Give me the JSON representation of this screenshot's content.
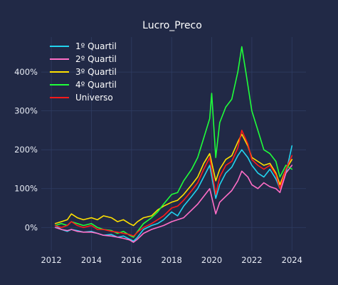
{
  "chart_data": {
    "type": "line",
    "title": "Lucro_Preco",
    "xlabel": "",
    "ylabel": "",
    "xlim": [
      2011.5,
      2024.7
    ],
    "ylim": [
      -60,
      490
    ],
    "x_ticks": [
      2012,
      2014,
      2016,
      2018,
      2020,
      2022,
      2024
    ],
    "x_tick_labels": [
      "2012",
      "2014",
      "2016",
      "2018",
      "2020",
      "2022",
      "2024"
    ],
    "y_ticks": [
      0,
      100,
      200,
      300,
      400
    ],
    "y_tick_labels": [
      "0%",
      "100%",
      "200%",
      "300%",
      "400%"
    ],
    "grid": true,
    "legend_position": "top-left",
    "background_color": "#212946",
    "series": [
      {
        "name": "1º Quartil",
        "color": "#22d3ee",
        "points": [
          [
            2012.2,
            5
          ],
          [
            2012.5,
            -5
          ],
          [
            2012.8,
            -10
          ],
          [
            2013.0,
            -5
          ],
          [
            2013.3,
            -8
          ],
          [
            2013.6,
            -12
          ],
          [
            2014.0,
            -10
          ],
          [
            2014.3,
            -15
          ],
          [
            2014.6,
            -20
          ],
          [
            2015.0,
            -18
          ],
          [
            2015.3,
            -25
          ],
          [
            2015.6,
            -22
          ],
          [
            2015.9,
            -30
          ],
          [
            2016.1,
            -35
          ],
          [
            2016.3,
            -25
          ],
          [
            2016.6,
            -5
          ],
          [
            2017.0,
            5
          ],
          [
            2017.3,
            10
          ],
          [
            2017.6,
            20
          ],
          [
            2018.0,
            40
          ],
          [
            2018.3,
            30
          ],
          [
            2018.6,
            55
          ],
          [
            2019.0,
            80
          ],
          [
            2019.3,
            100
          ],
          [
            2019.6,
            130
          ],
          [
            2019.9,
            160
          ],
          [
            2020.2,
            75
          ],
          [
            2020.4,
            110
          ],
          [
            2020.7,
            140
          ],
          [
            2021.0,
            155
          ],
          [
            2021.3,
            185
          ],
          [
            2021.5,
            200
          ],
          [
            2021.8,
            180
          ],
          [
            2022.0,
            160
          ],
          [
            2022.3,
            140
          ],
          [
            2022.6,
            130
          ],
          [
            2022.9,
            150
          ],
          [
            2023.2,
            125
          ],
          [
            2023.4,
            100
          ],
          [
            2023.7,
            140
          ],
          [
            2024.0,
            210
          ]
        ]
      },
      {
        "name": "2º Quartil",
        "color": "#ff6ec7",
        "points": [
          [
            2012.2,
            0
          ],
          [
            2012.5,
            -5
          ],
          [
            2012.8,
            -8
          ],
          [
            2013.0,
            -5
          ],
          [
            2013.3,
            -10
          ],
          [
            2013.6,
            -12
          ],
          [
            2014.0,
            -12
          ],
          [
            2014.3,
            -15
          ],
          [
            2014.6,
            -20
          ],
          [
            2015.0,
            -22
          ],
          [
            2015.3,
            -25
          ],
          [
            2015.6,
            -28
          ],
          [
            2015.9,
            -32
          ],
          [
            2016.1,
            -38
          ],
          [
            2016.3,
            -30
          ],
          [
            2016.6,
            -15
          ],
          [
            2017.0,
            -5
          ],
          [
            2017.3,
            0
          ],
          [
            2017.6,
            5
          ],
          [
            2018.0,
            15
          ],
          [
            2018.3,
            20
          ],
          [
            2018.6,
            25
          ],
          [
            2019.0,
            45
          ],
          [
            2019.3,
            60
          ],
          [
            2019.6,
            80
          ],
          [
            2019.9,
            100
          ],
          [
            2020.2,
            35
          ],
          [
            2020.4,
            65
          ],
          [
            2020.7,
            80
          ],
          [
            2021.0,
            95
          ],
          [
            2021.3,
            120
          ],
          [
            2021.5,
            145
          ],
          [
            2021.8,
            130
          ],
          [
            2022.0,
            110
          ],
          [
            2022.3,
            100
          ],
          [
            2022.6,
            115
          ],
          [
            2022.9,
            105
          ],
          [
            2023.2,
            100
          ],
          [
            2023.4,
            90
          ],
          [
            2023.7,
            140
          ],
          [
            2024.0,
            160
          ]
        ]
      },
      {
        "name": "3º Quartil",
        "color": "#ffe100",
        "points": [
          [
            2012.2,
            10
          ],
          [
            2012.5,
            15
          ],
          [
            2012.8,
            20
          ],
          [
            2013.0,
            35
          ],
          [
            2013.3,
            25
          ],
          [
            2013.6,
            20
          ],
          [
            2014.0,
            25
          ],
          [
            2014.3,
            20
          ],
          [
            2014.6,
            30
          ],
          [
            2015.0,
            25
          ],
          [
            2015.3,
            15
          ],
          [
            2015.6,
            20
          ],
          [
            2015.9,
            10
          ],
          [
            2016.1,
            5
          ],
          [
            2016.3,
            15
          ],
          [
            2016.6,
            25
          ],
          [
            2017.0,
            30
          ],
          [
            2017.3,
            45
          ],
          [
            2017.6,
            55
          ],
          [
            2018.0,
            65
          ],
          [
            2018.3,
            70
          ],
          [
            2018.6,
            85
          ],
          [
            2019.0,
            110
          ],
          [
            2019.3,
            130
          ],
          [
            2019.6,
            165
          ],
          [
            2019.9,
            190
          ],
          [
            2020.2,
            120
          ],
          [
            2020.4,
            150
          ],
          [
            2020.7,
            175
          ],
          [
            2021.0,
            185
          ],
          [
            2021.3,
            220
          ],
          [
            2021.5,
            240
          ],
          [
            2021.8,
            210
          ],
          [
            2022.0,
            180
          ],
          [
            2022.3,
            170
          ],
          [
            2022.6,
            160
          ],
          [
            2022.9,
            165
          ],
          [
            2023.2,
            140
          ],
          [
            2023.4,
            110
          ],
          [
            2023.7,
            150
          ],
          [
            2024.0,
            175
          ]
        ]
      },
      {
        "name": "4º Quartil",
        "color": "#1fff3a",
        "points": [
          [
            2012.2,
            5
          ],
          [
            2012.5,
            10
          ],
          [
            2012.8,
            5
          ],
          [
            2013.0,
            15
          ],
          [
            2013.3,
            10
          ],
          [
            2013.6,
            5
          ],
          [
            2014.0,
            10
          ],
          [
            2014.3,
            0
          ],
          [
            2014.6,
            -5
          ],
          [
            2015.0,
            -8
          ],
          [
            2015.3,
            -15
          ],
          [
            2015.6,
            -10
          ],
          [
            2015.9,
            -20
          ],
          [
            2016.1,
            -25
          ],
          [
            2016.3,
            -10
          ],
          [
            2016.6,
            10
          ],
          [
            2017.0,
            25
          ],
          [
            2017.3,
            40
          ],
          [
            2017.6,
            60
          ],
          [
            2018.0,
            85
          ],
          [
            2018.3,
            90
          ],
          [
            2018.6,
            120
          ],
          [
            2019.0,
            150
          ],
          [
            2019.3,
            180
          ],
          [
            2019.6,
            230
          ],
          [
            2019.9,
            280
          ],
          [
            2020.0,
            345
          ],
          [
            2020.2,
            180
          ],
          [
            2020.4,
            270
          ],
          [
            2020.7,
            310
          ],
          [
            2021.0,
            330
          ],
          [
            2021.3,
            400
          ],
          [
            2021.5,
            465
          ],
          [
            2021.7,
            400
          ],
          [
            2022.0,
            300
          ],
          [
            2022.3,
            250
          ],
          [
            2022.6,
            200
          ],
          [
            2022.9,
            190
          ],
          [
            2023.2,
            170
          ],
          [
            2023.4,
            130
          ],
          [
            2023.7,
            160
          ],
          [
            2024.0,
            150
          ]
        ]
      },
      {
        "name": "Universo",
        "color": "#ff1a1a",
        "points": [
          [
            2012.2,
            5
          ],
          [
            2012.5,
            0
          ],
          [
            2012.8,
            5
          ],
          [
            2013.0,
            15
          ],
          [
            2013.3,
            5
          ],
          [
            2013.6,
            0
          ],
          [
            2014.0,
            5
          ],
          [
            2014.3,
            -5
          ],
          [
            2014.6,
            -5
          ],
          [
            2015.0,
            -10
          ],
          [
            2015.3,
            -12
          ],
          [
            2015.6,
            -15
          ],
          [
            2015.9,
            -18
          ],
          [
            2016.1,
            -22
          ],
          [
            2016.3,
            -12
          ],
          [
            2016.6,
            0
          ],
          [
            2017.0,
            10
          ],
          [
            2017.3,
            20
          ],
          [
            2017.6,
            30
          ],
          [
            2018.0,
            50
          ],
          [
            2018.3,
            55
          ],
          [
            2018.6,
            70
          ],
          [
            2019.0,
            95
          ],
          [
            2019.3,
            115
          ],
          [
            2019.6,
            150
          ],
          [
            2019.9,
            180
          ],
          [
            2020.2,
            85
          ],
          [
            2020.4,
            130
          ],
          [
            2020.7,
            160
          ],
          [
            2021.0,
            170
          ],
          [
            2021.3,
            205
          ],
          [
            2021.5,
            250
          ],
          [
            2021.8,
            215
          ],
          [
            2022.0,
            175
          ],
          [
            2022.3,
            160
          ],
          [
            2022.6,
            150
          ],
          [
            2022.9,
            160
          ],
          [
            2023.2,
            135
          ],
          [
            2023.4,
            100
          ],
          [
            2023.7,
            150
          ],
          [
            2024.0,
            185
          ]
        ]
      }
    ]
  }
}
